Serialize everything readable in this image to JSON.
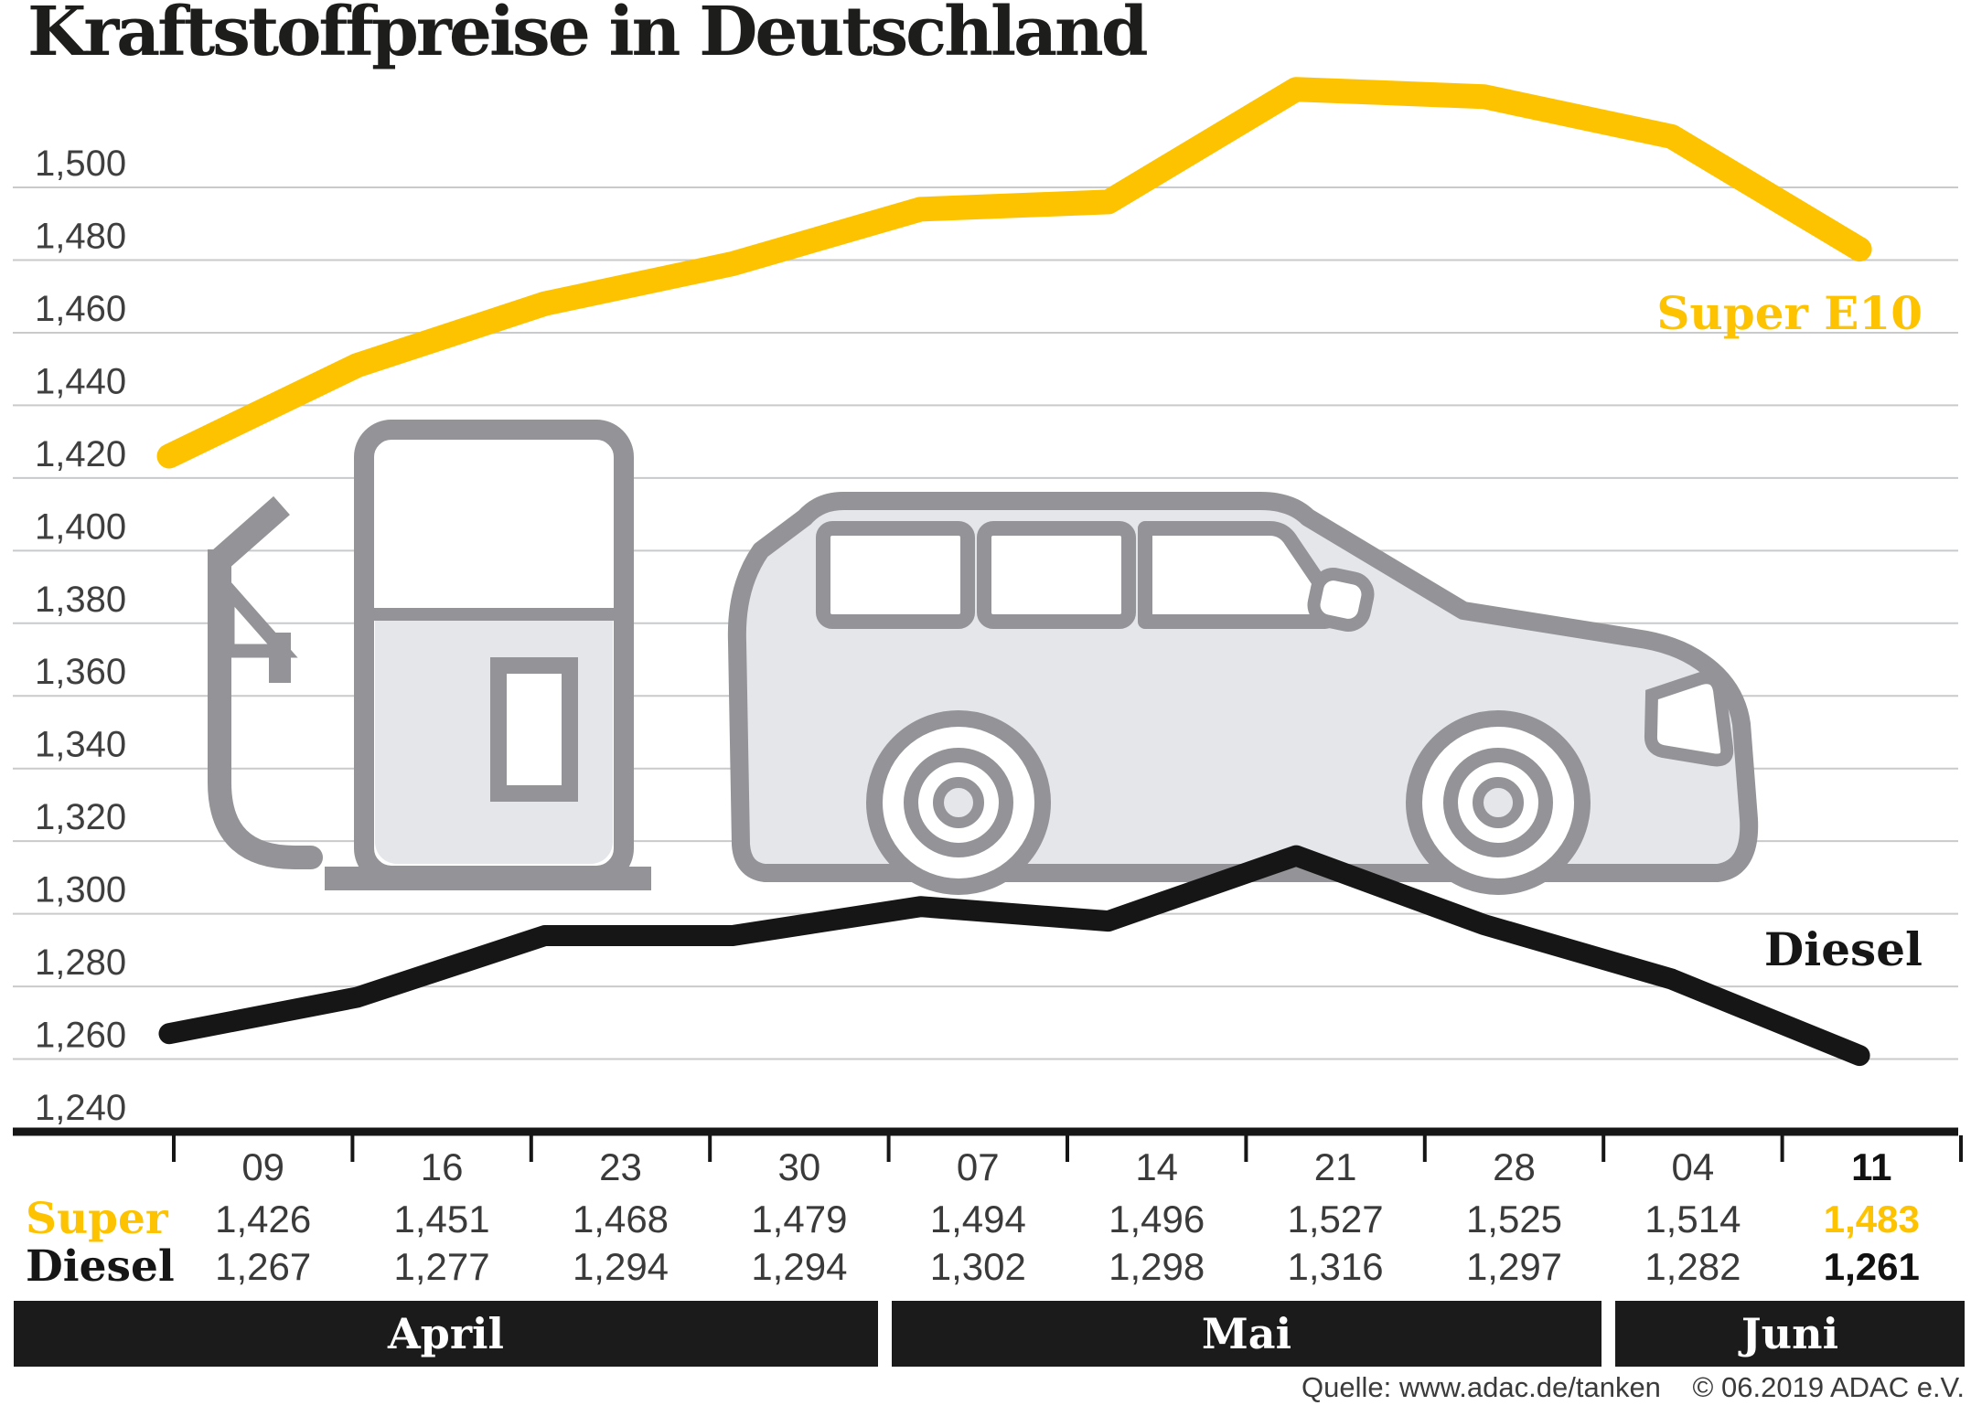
{
  "title": "Kraftstoffpreise in Deutschland",
  "colors": {
    "super_e10": "#fdc300",
    "diesel": "#161616",
    "gridline": "#c9cacb",
    "month_bar": "#1b1b1b",
    "illustration_gray": "#939398",
    "illustration_fill": "#e4e6e9"
  },
  "chart_data": {
    "type": "line",
    "title": "Kraftstoffpreise in Deutschland",
    "x_categories": [
      "09",
      "16",
      "23",
      "30",
      "07",
      "14",
      "21",
      "28",
      "04",
      "11"
    ],
    "month_groups": [
      {
        "label": "April",
        "dates": [
          "09",
          "16",
          "23",
          "30"
        ]
      },
      {
        "label": "Mai",
        "dates": [
          "07",
          "14",
          "21",
          "28"
        ]
      },
      {
        "label": "Juni",
        "dates": [
          "04",
          "11"
        ]
      }
    ],
    "y_axis": {
      "min": 1.24,
      "max": 1.5,
      "step": 0.02,
      "ticks": [
        {
          "label": "1,500",
          "value": 1.5
        },
        {
          "label": "1,480",
          "value": 1.48
        },
        {
          "label": "1,460",
          "value": 1.46
        },
        {
          "label": "1,440",
          "value": 1.44
        },
        {
          "label": "1,420",
          "value": 1.42
        },
        {
          "label": "1,400",
          "value": 1.4
        },
        {
          "label": "1,380",
          "value": 1.38
        },
        {
          "label": "1,360",
          "value": 1.36
        },
        {
          "label": "1,340",
          "value": 1.34
        },
        {
          "label": "1,320",
          "value": 1.32
        },
        {
          "label": "1,300",
          "value": 1.3
        },
        {
          "label": "1,280",
          "value": 1.28
        },
        {
          "label": "1,260",
          "value": 1.26
        },
        {
          "label": "1,240",
          "value": 1.24
        }
      ]
    },
    "grid": true,
    "legend_position": "inline-right",
    "series": [
      {
        "name": "Super E10",
        "color": "#fdc300",
        "values": [
          1.426,
          1.451,
          1.468,
          1.479,
          1.494,
          1.496,
          1.527,
          1.525,
          1.514,
          1.483
        ]
      },
      {
        "name": "Diesel",
        "color": "#161616",
        "values": [
          1.267,
          1.277,
          1.294,
          1.294,
          1.302,
          1.298,
          1.316,
          1.297,
          1.282,
          1.261
        ]
      }
    ]
  },
  "table": {
    "row_labels": {
      "super": "Super",
      "diesel": "Diesel"
    },
    "columns": [
      {
        "date": "09",
        "super": "1,426",
        "diesel": "1,267",
        "bold": false
      },
      {
        "date": "16",
        "super": "1,451",
        "diesel": "1,277",
        "bold": false
      },
      {
        "date": "23",
        "super": "1,468",
        "diesel": "1,294",
        "bold": false
      },
      {
        "date": "30",
        "super": "1,479",
        "diesel": "1,294",
        "bold": false
      },
      {
        "date": "07",
        "super": "1,494",
        "diesel": "1,302",
        "bold": false
      },
      {
        "date": "14",
        "super": "1,496",
        "diesel": "1,298",
        "bold": false
      },
      {
        "date": "21",
        "super": "1,527",
        "diesel": "1,316",
        "bold": false
      },
      {
        "date": "28",
        "super": "1,525",
        "diesel": "1,297",
        "bold": false
      },
      {
        "date": "04",
        "super": "1,514",
        "diesel": "1,282",
        "bold": false
      },
      {
        "date": "11",
        "super": "1,483",
        "diesel": "1,261",
        "bold": true
      }
    ]
  },
  "months": [
    {
      "label": "April"
    },
    {
      "label": "Mai"
    },
    {
      "label": "Juni"
    }
  ],
  "source": {
    "quelle": "Quelle: www.adac.de/tanken",
    "copyright": "© 06.2019  ADAC e.V."
  }
}
